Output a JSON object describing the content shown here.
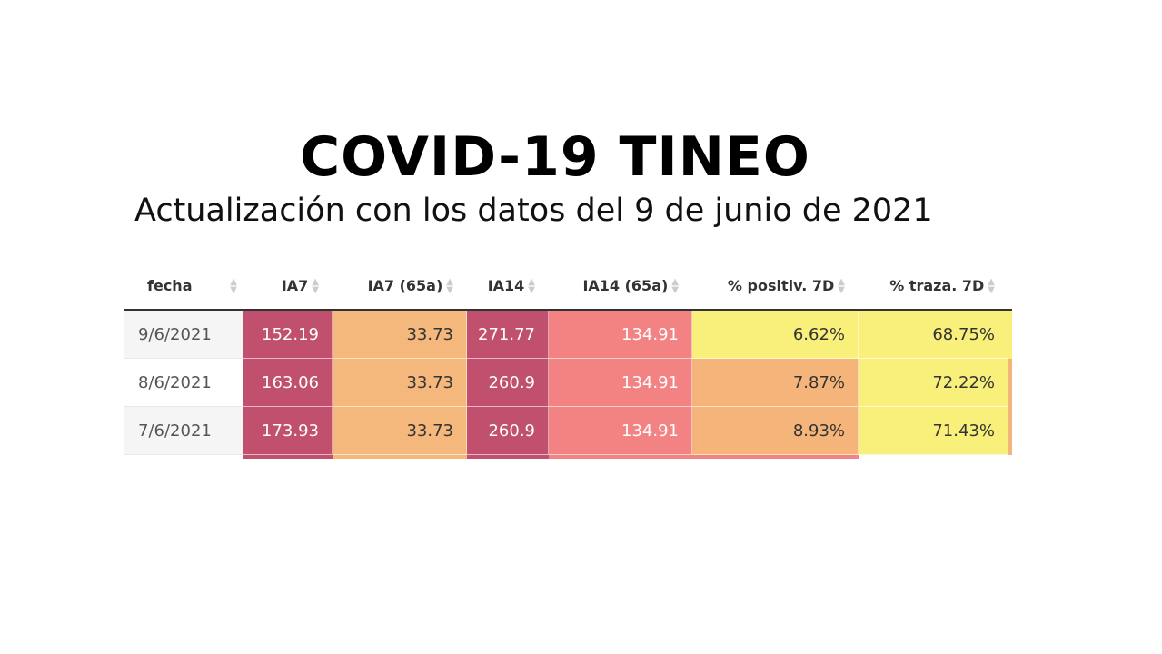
{
  "title": "COVID-19 TINEO",
  "subtitle": "Actualización con los datos del 9 de junio de 2021",
  "table": {
    "headers": [
      "fecha",
      "IA7",
      "IA7 (65a)",
      "IA14",
      "IA14 (65a)",
      "% positiv. 7D",
      "% traza. 7D"
    ],
    "rows": [
      {
        "cells": [
          "9/6/2021",
          "152.19",
          "33.73",
          "271.77",
          "134.91",
          "6.62%",
          "68.75%"
        ],
        "colors": [
          "#f5f5f5",
          "#c0506e",
          "#f5b87c",
          "#c0506e",
          "#f38383",
          "#f8f07a",
          "#f8f07a"
        ]
      },
      {
        "cells": [
          "8/6/2021",
          "163.06",
          "33.73",
          "260.9",
          "134.91",
          "7.87%",
          "72.22%"
        ],
        "colors": [
          "#ffffff",
          "#c0506e",
          "#f5b87c",
          "#c0506e",
          "#f38383",
          "#f5b47a",
          "#f8f07a"
        ]
      },
      {
        "cells": [
          "7/6/2021",
          "173.93",
          "33.73",
          "260.9",
          "134.91",
          "8.93%",
          "71.43%"
        ],
        "colors": [
          "#f5f5f5",
          "#c0506e",
          "#f5b87c",
          "#c0506e",
          "#f38383",
          "#f5b47a",
          "#f8f07a"
        ]
      }
    ]
  }
}
